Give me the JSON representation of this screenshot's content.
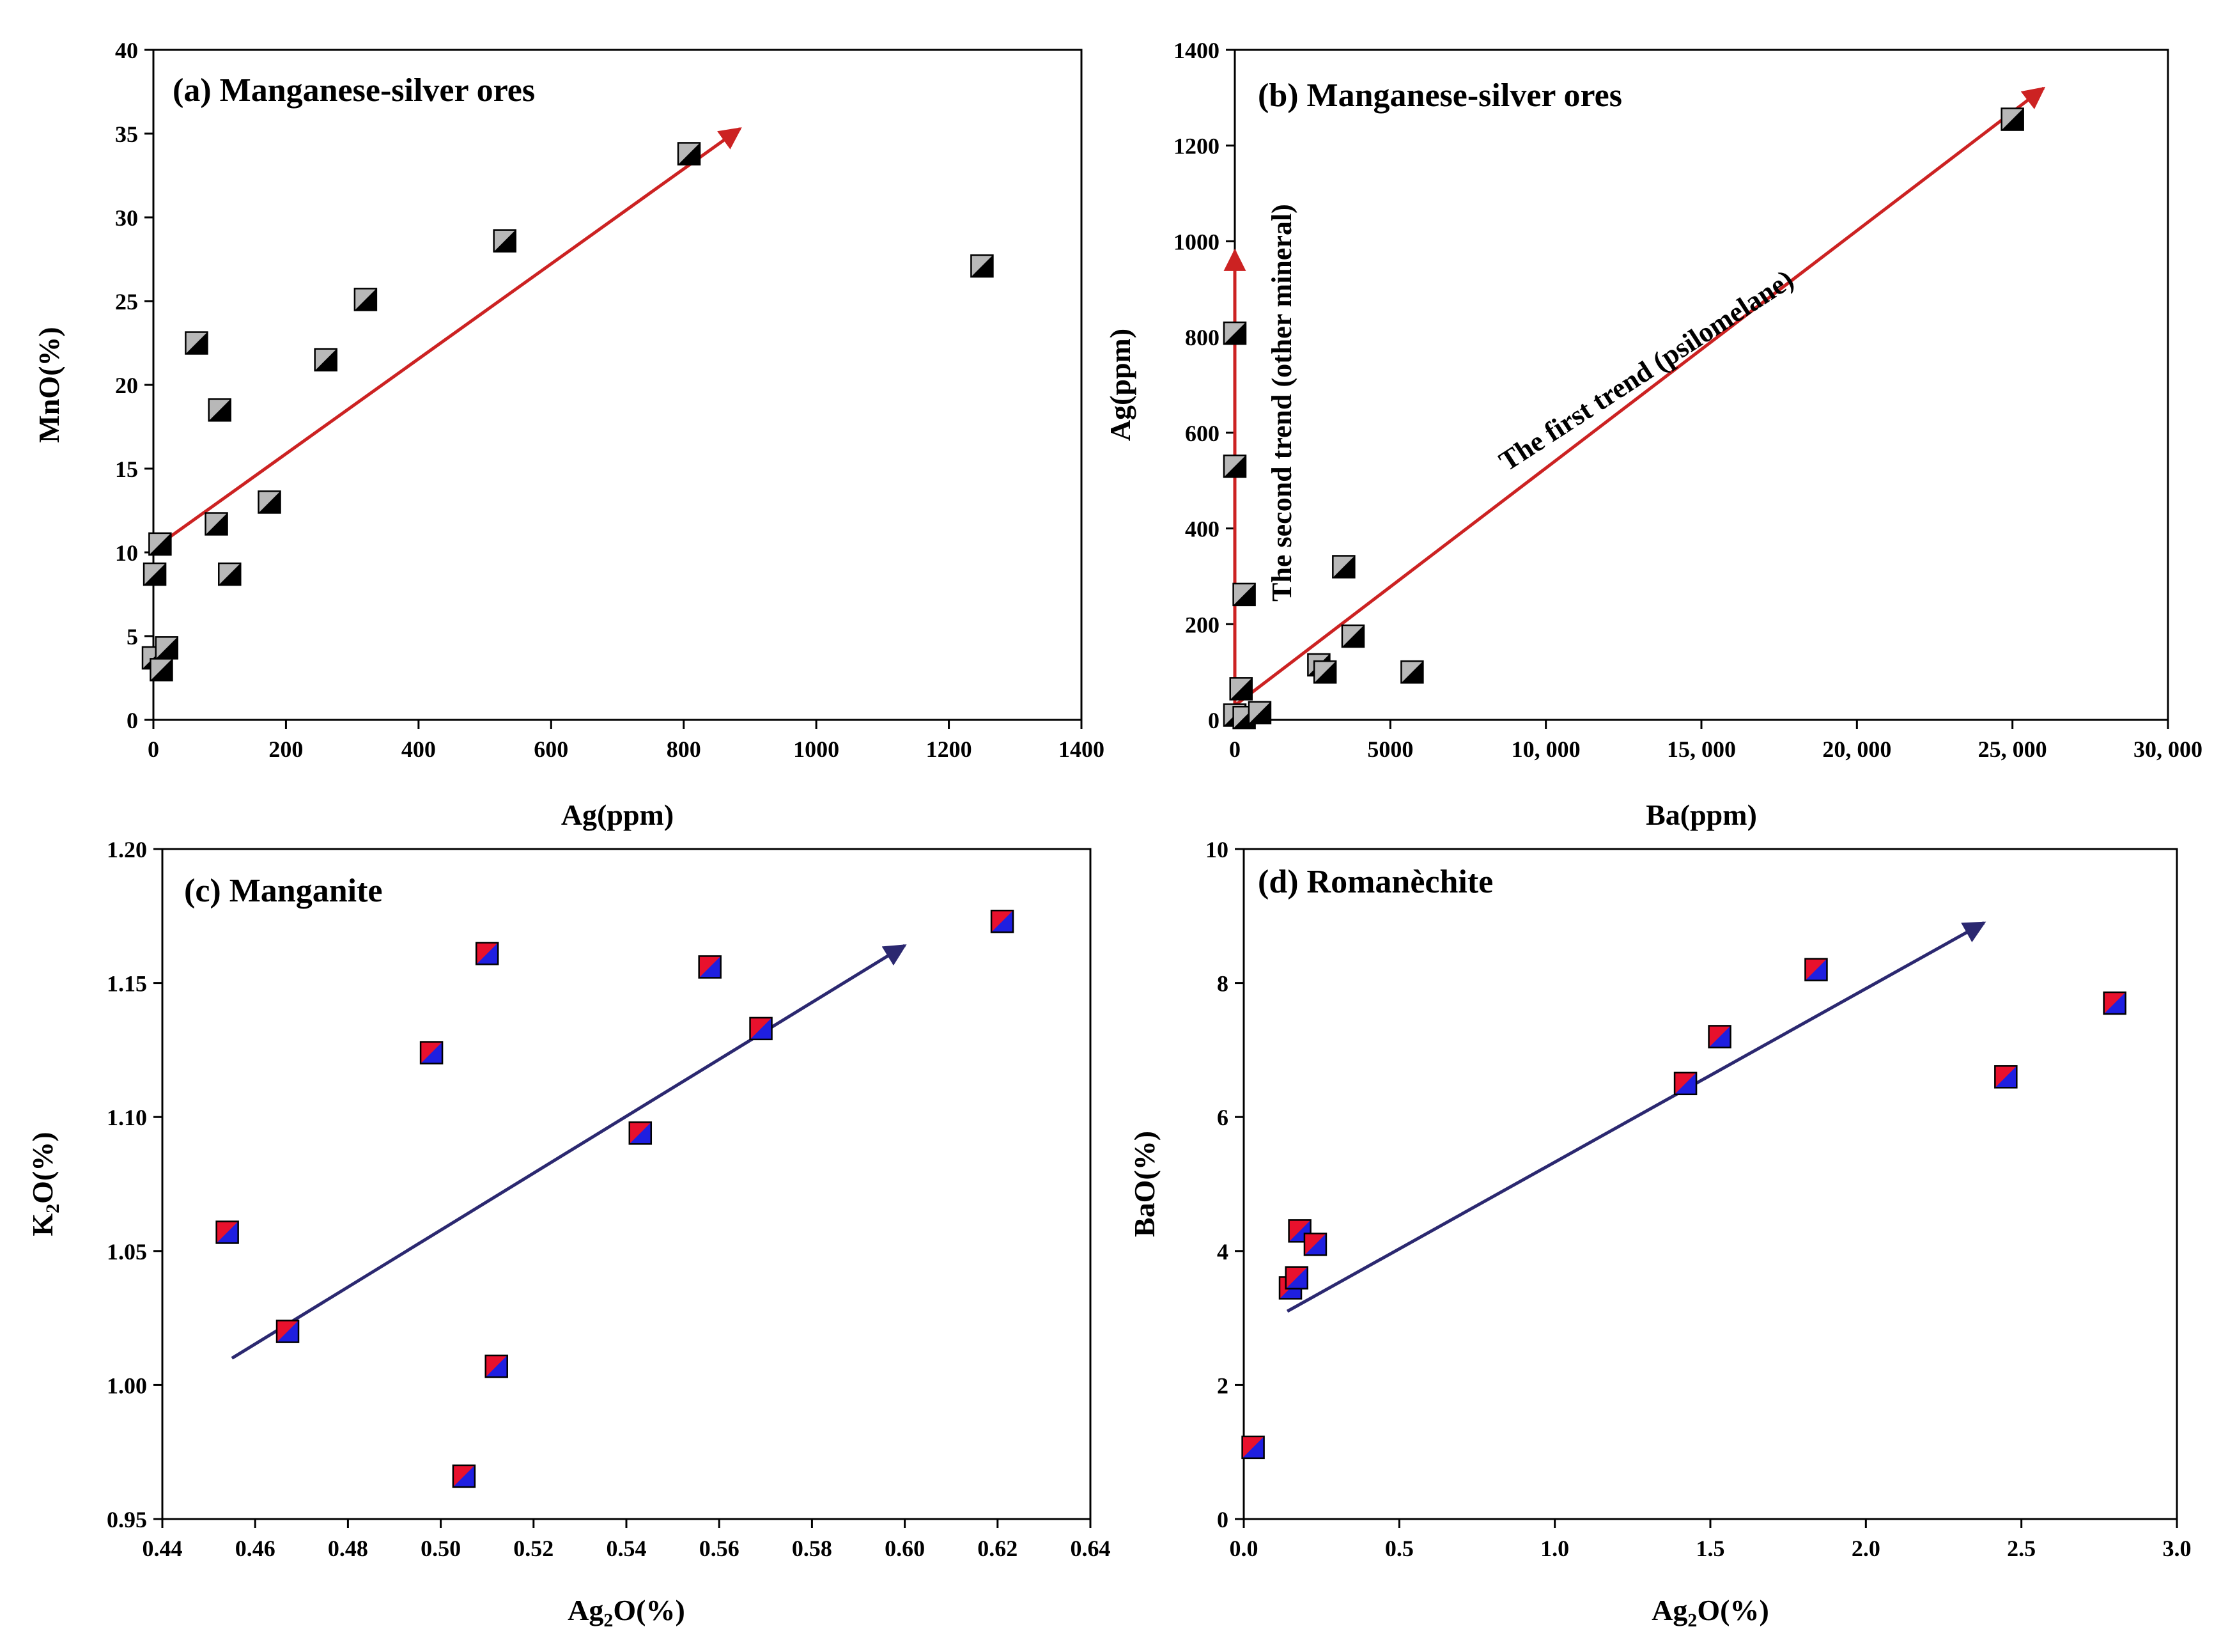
{
  "chart_data": [
    {
      "id": "a",
      "type": "scatter",
      "title": "(a) Manganese-silver ores",
      "xlabel": "Ag(ppm)",
      "ylabel": "MnO(%)",
      "xlim": [
        0,
        1400
      ],
      "ylim": [
        0,
        40
      ],
      "xticks": [
        0,
        200,
        400,
        600,
        800,
        1000,
        1200,
        1400
      ],
      "xtick_labels": [
        "0",
        "200",
        "400",
        "600",
        "800",
        "1000",
        "1200",
        "1400"
      ],
      "yticks": [
        0,
        5,
        10,
        15,
        20,
        25,
        30,
        35,
        40
      ],
      "ytick_labels": [
        "0",
        "5",
        "10",
        "15",
        "20",
        "25",
        "30",
        "35",
        "40"
      ],
      "marker_colors": [
        "#b8b8b8",
        "#000000"
      ],
      "points": [
        {
          "x": 0,
          "y": 3.7
        },
        {
          "x": 20,
          "y": 4.3
        },
        {
          "x": 12,
          "y": 3.0
        },
        {
          "x": 2,
          "y": 8.7
        },
        {
          "x": 10,
          "y": 10.5
        },
        {
          "x": 115,
          "y": 8.7
        },
        {
          "x": 95,
          "y": 11.7
        },
        {
          "x": 175,
          "y": 13.0
        },
        {
          "x": 100,
          "y": 18.5
        },
        {
          "x": 65,
          "y": 22.5
        },
        {
          "x": 260,
          "y": 21.5
        },
        {
          "x": 320,
          "y": 25.1
        },
        {
          "x": 530,
          "y": 28.6
        },
        {
          "x": 808,
          "y": 33.8
        },
        {
          "x": 1250,
          "y": 27.1
        }
      ],
      "trend_arrows": [
        {
          "from": [
            10,
            10.5
          ],
          "to": [
            885,
            35.3
          ],
          "color": "#cc2222"
        }
      ]
    },
    {
      "id": "b",
      "type": "scatter",
      "title": "(b) Manganese-silver ores",
      "xlabel": "Ba(ppm)",
      "ylabel": "Ag(ppm)",
      "xlim": [
        0,
        30000
      ],
      "ylim": [
        0,
        1400
      ],
      "xticks": [
        0,
        5000,
        10000,
        15000,
        20000,
        25000,
        30000
      ],
      "xtick_labels": [
        "0",
        "5000",
        "10, 000",
        "15, 000",
        "20, 000",
        "25, 000",
        "30, 000"
      ],
      "yticks": [
        0,
        200,
        400,
        600,
        800,
        1000,
        1200,
        1400
      ],
      "ytick_labels": [
        "0",
        "200",
        "400",
        "600",
        "800",
        "1000",
        "1200",
        "1400"
      ],
      "marker_colors": [
        "#b8b8b8",
        "#000000"
      ],
      "points": [
        {
          "x": 0,
          "y": 808
        },
        {
          "x": 0,
          "y": 530
        },
        {
          "x": 300,
          "y": 262
        },
        {
          "x": 200,
          "y": 65
        },
        {
          "x": 0,
          "y": 10
        },
        {
          "x": 300,
          "y": 5
        },
        {
          "x": 800,
          "y": 15
        },
        {
          "x": 3500,
          "y": 320
        },
        {
          "x": 3800,
          "y": 175
        },
        {
          "x": 2700,
          "y": 115
        },
        {
          "x": 2900,
          "y": 100
        },
        {
          "x": 5700,
          "y": 100
        },
        {
          "x": 25000,
          "y": 1255
        }
      ],
      "trend_arrows": [
        {
          "from": [
            0,
            0
          ],
          "to": [
            0,
            980
          ],
          "color": "#cc2222"
        },
        {
          "from": [
            0,
            30
          ],
          "to": [
            26000,
            1320
          ],
          "color": "#cc2222"
        }
      ],
      "annotations": [
        {
          "text": "The first trend (psilomelane)"
        },
        {
          "text": "The second trend (other  mineral)"
        }
      ]
    },
    {
      "id": "c",
      "type": "scatter",
      "title": "(c) Manganite",
      "xlabel_main": "Ag",
      "xlabel_sub": "2",
      "xlabel_rest": "O(%)",
      "ylabel_main": "K",
      "ylabel_sub": "2",
      "ylabel_rest": "O(%)",
      "xlim": [
        0.44,
        0.64
      ],
      "ylim": [
        0.95,
        1.2
      ],
      "xticks": [
        0.44,
        0.46,
        0.48,
        0.5,
        0.52,
        0.54,
        0.56,
        0.58,
        0.6,
        0.62,
        0.64
      ],
      "xtick_labels": [
        "0.44",
        "0.46",
        "0.48",
        "0.50",
        "0.52",
        "0.54",
        "0.56",
        "0.58",
        "0.60",
        "0.62",
        "0.64"
      ],
      "yticks": [
        0.95,
        1.0,
        1.05,
        1.1,
        1.15,
        1.2
      ],
      "ytick_labels": [
        "0.95",
        "1.00",
        "1.05",
        "1.10",
        "1.15",
        "1.20"
      ],
      "marker_colors": [
        "#e8112d",
        "#1f1fe0"
      ],
      "points": [
        {
          "x": 0.454,
          "y": 1.057
        },
        {
          "x": 0.467,
          "y": 1.02
        },
        {
          "x": 0.498,
          "y": 1.124
        },
        {
          "x": 0.505,
          "y": 0.966
        },
        {
          "x": 0.51,
          "y": 1.161
        },
        {
          "x": 0.512,
          "y": 1.007
        },
        {
          "x": 0.543,
          "y": 1.094
        },
        {
          "x": 0.558,
          "y": 1.156
        },
        {
          "x": 0.569,
          "y": 1.133
        },
        {
          "x": 0.621,
          "y": 1.173
        }
      ],
      "trend_arrows": [
        {
          "from": [
            0.455,
            1.01
          ],
          "to": [
            0.6,
            1.164
          ],
          "color": "#2b2870"
        }
      ]
    },
    {
      "id": "d",
      "type": "scatter",
      "title": "(d) Romanèchite",
      "xlabel_main": "Ag",
      "xlabel_sub": "2",
      "xlabel_rest": "O(%)",
      "ylabel": "BaO(%)",
      "xlim": [
        0,
        3.0
      ],
      "ylim": [
        0,
        10
      ],
      "xticks": [
        0,
        0.5,
        1.0,
        1.5,
        2.0,
        2.5,
        3.0
      ],
      "xtick_labels": [
        "0.0",
        "0.5",
        "1.0",
        "1.5",
        "2.0",
        "2.5",
        "3.0"
      ],
      "yticks": [
        0,
        2,
        4,
        6,
        8,
        10
      ],
      "ytick_labels": [
        "0",
        "2",
        "4",
        "6",
        "8",
        "10"
      ],
      "marker_colors": [
        "#e8112d",
        "#1f1fe0"
      ],
      "points": [
        {
          "x": 0.03,
          "y": 1.07
        },
        {
          "x": 0.15,
          "y": 3.45
        },
        {
          "x": 0.17,
          "y": 3.6
        },
        {
          "x": 0.18,
          "y": 4.3
        },
        {
          "x": 0.23,
          "y": 4.1
        },
        {
          "x": 1.42,
          "y": 6.5
        },
        {
          "x": 1.53,
          "y": 7.2
        },
        {
          "x": 1.84,
          "y": 8.2
        },
        {
          "x": 2.45,
          "y": 6.6
        },
        {
          "x": 2.8,
          "y": 7.7
        }
      ],
      "trend_arrows": [
        {
          "from": [
            0.14,
            3.1
          ],
          "to": [
            2.38,
            8.9
          ],
          "color": "#2b2870"
        }
      ]
    }
  ]
}
